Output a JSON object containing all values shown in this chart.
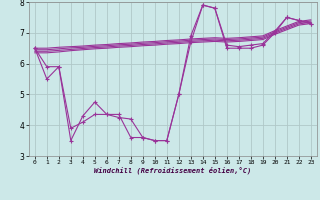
{
  "xlabel": "Windchill (Refroidissement éolien,°C)",
  "background_color": "#cce8e8",
  "grid_color": "#b0c8c8",
  "line_color": "#993399",
  "x_hours": [
    0,
    1,
    2,
    3,
    4,
    5,
    6,
    7,
    8,
    9,
    10,
    11,
    12,
    13,
    14,
    15,
    16,
    17,
    18,
    19,
    20,
    21,
    22,
    23
  ],
  "line1": [
    6.5,
    5.5,
    5.9,
    3.5,
    4.3,
    4.75,
    4.35,
    4.25,
    4.2,
    3.6,
    3.5,
    3.5,
    5.0,
    6.9,
    7.9,
    7.8,
    6.5,
    6.5,
    6.5,
    6.6,
    7.0,
    7.5,
    7.4,
    7.3
  ],
  "line2": [
    6.5,
    5.9,
    5.9,
    3.9,
    4.1,
    4.35,
    4.35,
    4.35,
    3.6,
    3.6,
    3.5,
    3.5,
    5.0,
    6.7,
    7.9,
    7.8,
    6.6,
    6.55,
    6.6,
    6.65,
    7.05,
    7.5,
    7.4,
    7.3
  ],
  "trend_line1": [
    6.35,
    6.35,
    6.38,
    6.42,
    6.45,
    6.48,
    6.5,
    6.53,
    6.55,
    6.58,
    6.6,
    6.63,
    6.65,
    6.68,
    6.7,
    6.72,
    6.7,
    6.72,
    6.75,
    6.78,
    6.95,
    7.1,
    7.25,
    7.3
  ],
  "trend_line2": [
    6.4,
    6.4,
    6.43,
    6.46,
    6.49,
    6.52,
    6.54,
    6.57,
    6.59,
    6.62,
    6.64,
    6.67,
    6.69,
    6.72,
    6.74,
    6.76,
    6.74,
    6.76,
    6.79,
    6.82,
    6.99,
    7.14,
    7.29,
    7.34
  ],
  "trend_line3": [
    6.45,
    6.45,
    6.48,
    6.51,
    6.53,
    6.56,
    6.58,
    6.61,
    6.63,
    6.66,
    6.68,
    6.71,
    6.73,
    6.76,
    6.78,
    6.8,
    6.78,
    6.8,
    6.83,
    6.86,
    7.03,
    7.18,
    7.33,
    7.38
  ],
  "trend_line4": [
    6.5,
    6.5,
    6.53,
    6.55,
    6.57,
    6.6,
    6.62,
    6.65,
    6.67,
    6.7,
    6.72,
    6.75,
    6.77,
    6.8,
    6.82,
    6.84,
    6.82,
    6.84,
    6.87,
    6.9,
    7.07,
    7.22,
    7.37,
    7.42
  ],
  "ylim": [
    3.0,
    8.0
  ],
  "xlim": [
    -0.5,
    23.5
  ],
  "yticks": [
    3,
    4,
    5,
    6,
    7,
    8
  ],
  "xticks": [
    0,
    1,
    2,
    3,
    4,
    5,
    6,
    7,
    8,
    9,
    10,
    11,
    12,
    13,
    14,
    15,
    16,
    17,
    18,
    19,
    20,
    21,
    22,
    23
  ],
  "linewidth": 0.8,
  "markersize": 3.5
}
